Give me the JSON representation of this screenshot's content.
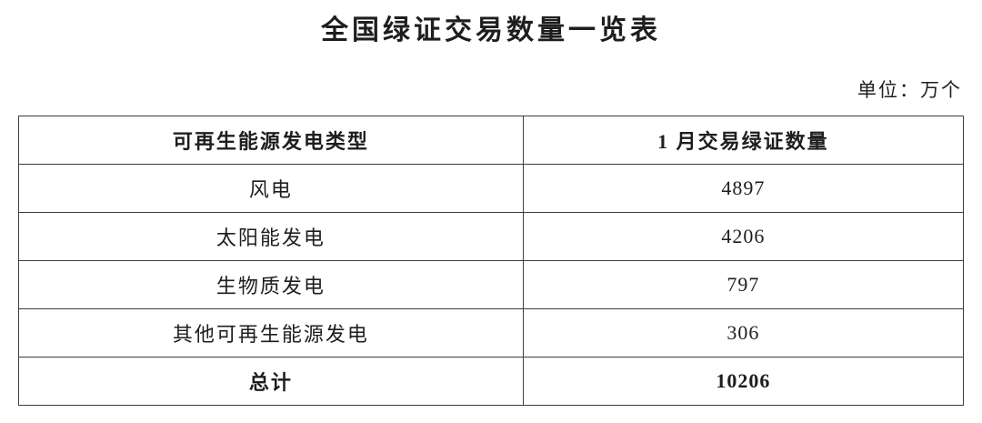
{
  "page": {
    "title": "全国绿证交易数量一览表",
    "unit_note": "单位：万个"
  },
  "chart_data": {
    "type": "table",
    "title": "全国绿证交易数量一览表",
    "unit_note": "单位：万个",
    "columns": [
      "可再生能源发电类型",
      "1 月交易绿证数量"
    ],
    "rows": [
      [
        "风电",
        "4897"
      ],
      [
        "太阳能发电",
        "4206"
      ],
      [
        "生物质发电",
        "797"
      ],
      [
        "其他可再生能源发电",
        "306"
      ],
      [
        "总计",
        "10206"
      ]
    ],
    "total_row_index": 4,
    "unit": "万个"
  },
  "colors": {
    "background": "#ffffff",
    "text": "#1e1e1e",
    "border": "#3d3d3d"
  }
}
